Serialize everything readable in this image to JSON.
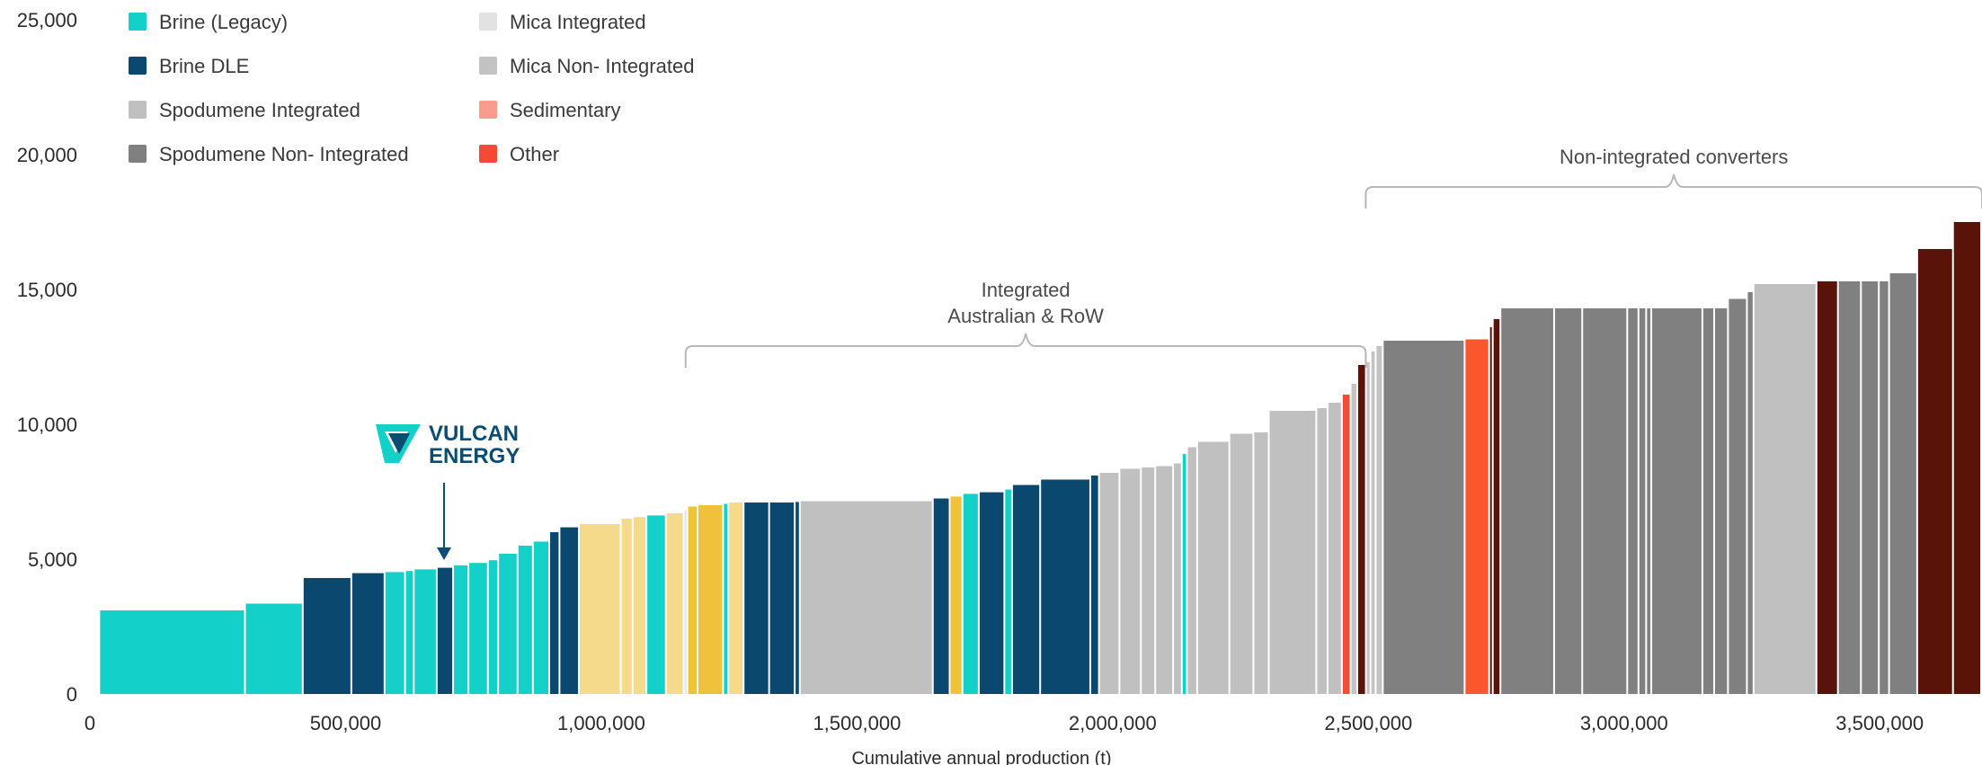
{
  "chart_data": {
    "type": "bar",
    "xlabel": "Cumulative annual production (t)",
    "ylabel": "",
    "xlim": [
      0,
      3700000
    ],
    "ylim": [
      0,
      25000
    ],
    "xticks": [
      {
        "value": 0,
        "label": "0"
      },
      {
        "value": 500000,
        "label": "500,000"
      },
      {
        "value": 1000000,
        "label": "1,000,000"
      },
      {
        "value": 1500000,
        "label": "1,500,000"
      },
      {
        "value": 2000000,
        "label": "2,000,000"
      },
      {
        "value": 2500000,
        "label": "2,500,000"
      },
      {
        "value": 3000000,
        "label": "3,000,000"
      },
      {
        "value": 3500000,
        "label": "3,500,000"
      }
    ],
    "yticks": [
      {
        "value": 0,
        "label": "0"
      },
      {
        "value": 5000,
        "label": "5,000"
      },
      {
        "value": 10000,
        "label": "10,000"
      },
      {
        "value": 15000,
        "label": "15,000"
      },
      {
        "value": 20000,
        "label": "20,000"
      },
      {
        "value": 25000,
        "label": "25,000"
      }
    ],
    "legend_placement": "top-left",
    "legend": [
      {
        "key": "brine_legacy",
        "label": "Brine (Legacy)",
        "color": "#13d1c8"
      },
      {
        "key": "brine_dle",
        "label": "Brine DLE",
        "color": "#0b4870"
      },
      {
        "key": "spod_int",
        "label": "Spodumene Integrated",
        "color": "#c0c0c0"
      },
      {
        "key": "spod_nonint",
        "label": "Spodumene Non- Integrated",
        "color": "#808080"
      },
      {
        "key": "mica_int",
        "label": "Mica Integrated",
        "color": "#e2e2e2"
      },
      {
        "key": "mica_nonint",
        "label": "Mica Non- Integrated",
        "color": "#c3c3c3"
      },
      {
        "key": "sedimentary",
        "label": "Sedimentary",
        "color": "#fa9b8e"
      },
      {
        "key": "other",
        "label": "Other",
        "color": "#f54a37"
      }
    ],
    "bars": [
      {
        "x0": 20000,
        "x1": 305000,
        "y": 3100,
        "color": "#13d1c8"
      },
      {
        "x0": 305000,
        "x1": 418000,
        "y": 3350,
        "color": "#13d1c8"
      },
      {
        "x0": 418000,
        "x1": 513000,
        "y": 4300,
        "color": "#0b4870"
      },
      {
        "x0": 513000,
        "x1": 578000,
        "y": 4480,
        "color": "#0b4870"
      },
      {
        "x0": 578000,
        "x1": 618000,
        "y": 4520,
        "color": "#13d1c8"
      },
      {
        "x0": 618000,
        "x1": 635000,
        "y": 4560,
        "color": "#13d1c8"
      },
      {
        "x0": 635000,
        "x1": 680000,
        "y": 4620,
        "color": "#13d1c8"
      },
      {
        "x0": 680000,
        "x1": 712000,
        "y": 4680,
        "color": "#0b4870"
      },
      {
        "x0": 712000,
        "x1": 742000,
        "y": 4770,
        "color": "#13d1c8"
      },
      {
        "x0": 742000,
        "x1": 780000,
        "y": 4860,
        "color": "#13d1c8"
      },
      {
        "x0": 780000,
        "x1": 800000,
        "y": 4960,
        "color": "#13d1c8"
      },
      {
        "x0": 800000,
        "x1": 838000,
        "y": 5200,
        "color": "#13d1c8"
      },
      {
        "x0": 838000,
        "x1": 868000,
        "y": 5500,
        "color": "#13d1c8"
      },
      {
        "x0": 868000,
        "x1": 900000,
        "y": 5650,
        "color": "#13d1c8"
      },
      {
        "x0": 900000,
        "x1": 920000,
        "y": 6000,
        "color": "#0b4870"
      },
      {
        "x0": 920000,
        "x1": 958000,
        "y": 6180,
        "color": "#0b4870"
      },
      {
        "x0": 958000,
        "x1": 1040000,
        "y": 6300,
        "color": "#f5da8c"
      },
      {
        "x0": 1040000,
        "x1": 1063000,
        "y": 6500,
        "color": "#f5da8c"
      },
      {
        "x0": 1063000,
        "x1": 1090000,
        "y": 6560,
        "color": "#f5da8c"
      },
      {
        "x0": 1090000,
        "x1": 1128000,
        "y": 6620,
        "color": "#13d1c8"
      },
      {
        "x0": 1128000,
        "x1": 1163000,
        "y": 6700,
        "color": "#f5da8c"
      },
      {
        "x0": 1163000,
        "x1": 1170000,
        "y": 6800,
        "color": "#e2e2e2"
      },
      {
        "x0": 1170000,
        "x1": 1190000,
        "y": 6950,
        "color": "#f0c23b"
      },
      {
        "x0": 1190000,
        "x1": 1240000,
        "y": 7000,
        "color": "#f0c23b"
      },
      {
        "x0": 1240000,
        "x1": 1250000,
        "y": 7050,
        "color": "#13d1c8"
      },
      {
        "x0": 1250000,
        "x1": 1280000,
        "y": 7100,
        "color": "#f5da8c"
      },
      {
        "x0": 1280000,
        "x1": 1330000,
        "y": 7100,
        "color": "#0b4870"
      },
      {
        "x0": 1330000,
        "x1": 1380000,
        "y": 7100,
        "color": "#0b4870"
      },
      {
        "x0": 1380000,
        "x1": 1390000,
        "y": 7120,
        "color": "#0b4870"
      },
      {
        "x0": 1390000,
        "x1": 1650000,
        "y": 7150,
        "color": "#c0c0c0"
      },
      {
        "x0": 1650000,
        "x1": 1683000,
        "y": 7250,
        "color": "#0b4870"
      },
      {
        "x0": 1683000,
        "x1": 1708000,
        "y": 7320,
        "color": "#f0c23b"
      },
      {
        "x0": 1708000,
        "x1": 1740000,
        "y": 7420,
        "color": "#13d1c8"
      },
      {
        "x0": 1740000,
        "x1": 1790000,
        "y": 7480,
        "color": "#0b4870"
      },
      {
        "x0": 1790000,
        "x1": 1805000,
        "y": 7580,
        "color": "#13d1c8"
      },
      {
        "x0": 1805000,
        "x1": 1860000,
        "y": 7750,
        "color": "#0b4870"
      },
      {
        "x0": 1860000,
        "x1": 1958000,
        "y": 7950,
        "color": "#0b4870"
      },
      {
        "x0": 1958000,
        "x1": 1975000,
        "y": 8100,
        "color": "#0b4870"
      },
      {
        "x0": 1975000,
        "x1": 2015000,
        "y": 8200,
        "color": "#c0c0c0"
      },
      {
        "x0": 2015000,
        "x1": 2057000,
        "y": 8350,
        "color": "#c0c0c0"
      },
      {
        "x0": 2057000,
        "x1": 2085000,
        "y": 8400,
        "color": "#c0c0c0"
      },
      {
        "x0": 2085000,
        "x1": 2120000,
        "y": 8450,
        "color": "#c0c0c0"
      },
      {
        "x0": 2120000,
        "x1": 2137000,
        "y": 8550,
        "color": "#c0c0c0"
      },
      {
        "x0": 2137000,
        "x1": 2147000,
        "y": 8900,
        "color": "#13d1c8"
      },
      {
        "x0": 2147000,
        "x1": 2167000,
        "y": 9150,
        "color": "#c0c0c0"
      },
      {
        "x0": 2167000,
        "x1": 2230000,
        "y": 9350,
        "color": "#c0c0c0"
      },
      {
        "x0": 2230000,
        "x1": 2277000,
        "y": 9650,
        "color": "#c0c0c0"
      },
      {
        "x0": 2277000,
        "x1": 2307000,
        "y": 9700,
        "color": "#c0c0c0"
      },
      {
        "x0": 2307000,
        "x1": 2400000,
        "y": 10500,
        "color": "#c0c0c0"
      },
      {
        "x0": 2400000,
        "x1": 2422000,
        "y": 10600,
        "color": "#c0c0c0"
      },
      {
        "x0": 2422000,
        "x1": 2450000,
        "y": 10800,
        "color": "#c0c0c0"
      },
      {
        "x0": 2450000,
        "x1": 2467000,
        "y": 11100,
        "color": "#f54a37"
      },
      {
        "x0": 2467000,
        "x1": 2480000,
        "y": 11500,
        "color": "#c3c3c3"
      },
      {
        "x0": 2480000,
        "x1": 2497000,
        "y": 12200,
        "color": "#5a1308"
      },
      {
        "x0": 2497000,
        "x1": 2506000,
        "y": 12300,
        "color": "#c3c3c3"
      },
      {
        "x0": 2506000,
        "x1": 2516000,
        "y": 12700,
        "color": "#c3c3c3"
      },
      {
        "x0": 2516000,
        "x1": 2530000,
        "y": 12900,
        "color": "#c3c3c3"
      },
      {
        "x0": 2530000,
        "x1": 2690000,
        "y": 13100,
        "color": "#808080"
      },
      {
        "x0": 2690000,
        "x1": 2738000,
        "y": 13150,
        "color": "#f9582f"
      },
      {
        "x0": 2738000,
        "x1": 2745000,
        "y": 13600,
        "color": "#5a1308"
      },
      {
        "x0": 2745000,
        "x1": 2760000,
        "y": 13900,
        "color": "#5a1308"
      },
      {
        "x0": 2760000,
        "x1": 2865000,
        "y": 14300,
        "color": "#808080"
      },
      {
        "x0": 2865000,
        "x1": 2920000,
        "y": 14300,
        "color": "#808080"
      },
      {
        "x0": 2920000,
        "x1": 3008000,
        "y": 14300,
        "color": "#808080"
      },
      {
        "x0": 3008000,
        "x1": 3030000,
        "y": 14300,
        "color": "#808080"
      },
      {
        "x0": 3030000,
        "x1": 3045000,
        "y": 14300,
        "color": "#808080"
      },
      {
        "x0": 3045000,
        "x1": 3055000,
        "y": 14300,
        "color": "#808080"
      },
      {
        "x0": 3055000,
        "x1": 3155000,
        "y": 14300,
        "color": "#808080"
      },
      {
        "x0": 3155000,
        "x1": 3178000,
        "y": 14300,
        "color": "#808080"
      },
      {
        "x0": 3178000,
        "x1": 3205000,
        "y": 14300,
        "color": "#808080"
      },
      {
        "x0": 3205000,
        "x1": 3242000,
        "y": 14650,
        "color": "#808080"
      },
      {
        "x0": 3242000,
        "x1": 3255000,
        "y": 14900,
        "color": "#808080"
      },
      {
        "x0": 3255000,
        "x1": 3378000,
        "y": 15200,
        "color": "#c0c0c0"
      },
      {
        "x0": 3378000,
        "x1": 3420000,
        "y": 15300,
        "color": "#5a1308"
      },
      {
        "x0": 3420000,
        "x1": 3465000,
        "y": 15300,
        "color": "#808080"
      },
      {
        "x0": 3465000,
        "x1": 3500000,
        "y": 15300,
        "color": "#808080"
      },
      {
        "x0": 3500000,
        "x1": 3520000,
        "y": 15300,
        "color": "#808080"
      },
      {
        "x0": 3520000,
        "x1": 3575000,
        "y": 15600,
        "color": "#808080"
      },
      {
        "x0": 3575000,
        "x1": 3645000,
        "y": 16500,
        "color": "#5a1308"
      },
      {
        "x0": 3645000,
        "x1": 3700000,
        "y": 17500,
        "color": "#5a1308"
      }
    ],
    "annotations": [
      {
        "key": "integrated",
        "lines": [
          "Integrated",
          "Australian & RoW"
        ],
        "x0": 1165000,
        "x1": 2495000,
        "y": 12900
      },
      {
        "key": "nonintegrated",
        "lines": [
          "Non-integrated converters"
        ],
        "x0": 2495000,
        "x1": 3700000,
        "y": 18800
      }
    ],
    "marker": {
      "label_line1": "VULCAN",
      "label_line2": "ENERGY",
      "x": 690000,
      "color": "#0b4d72"
    }
  }
}
